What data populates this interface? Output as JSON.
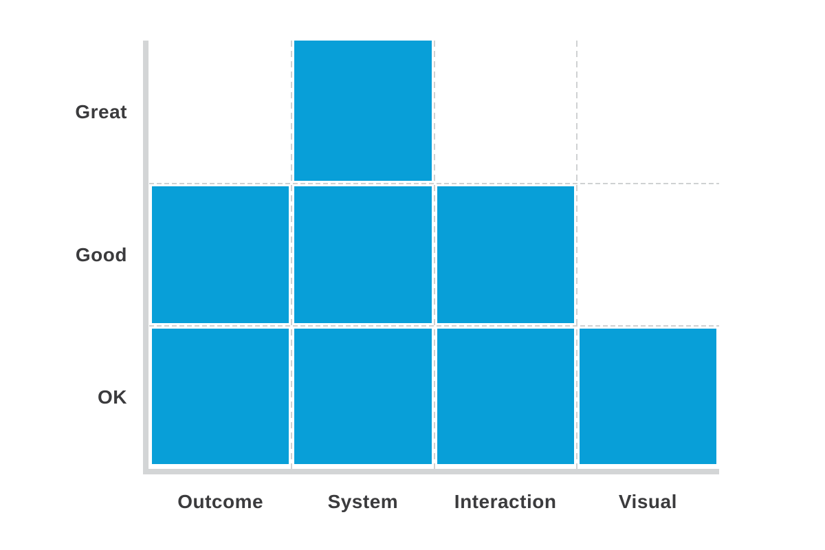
{
  "chart_data": {
    "type": "bar",
    "subtype": "discrete-level-blocks",
    "title": "",
    "xlabel": "",
    "ylabel": "",
    "categories": [
      "Outcome",
      "System",
      "Interaction",
      "Visual"
    ],
    "values": [
      2,
      3,
      2,
      1
    ],
    "value_labels": [
      "Good",
      "Great",
      "Good",
      "OK"
    ],
    "y_tick_labels_top_to_bottom": [
      "Great",
      "Good",
      "OK"
    ],
    "levels_bottom_to_top": [
      "OK",
      "Good",
      "Great"
    ],
    "ylim": [
      0,
      3
    ],
    "grid": "dashed-row-and-column-boundaries",
    "legend_position": "none",
    "colors": {
      "block": "#089fd8",
      "axis": "#d3d5d6",
      "gridline": "#cfd1d2",
      "label_text": "#3b3b3d",
      "background": "#ffffff"
    }
  }
}
